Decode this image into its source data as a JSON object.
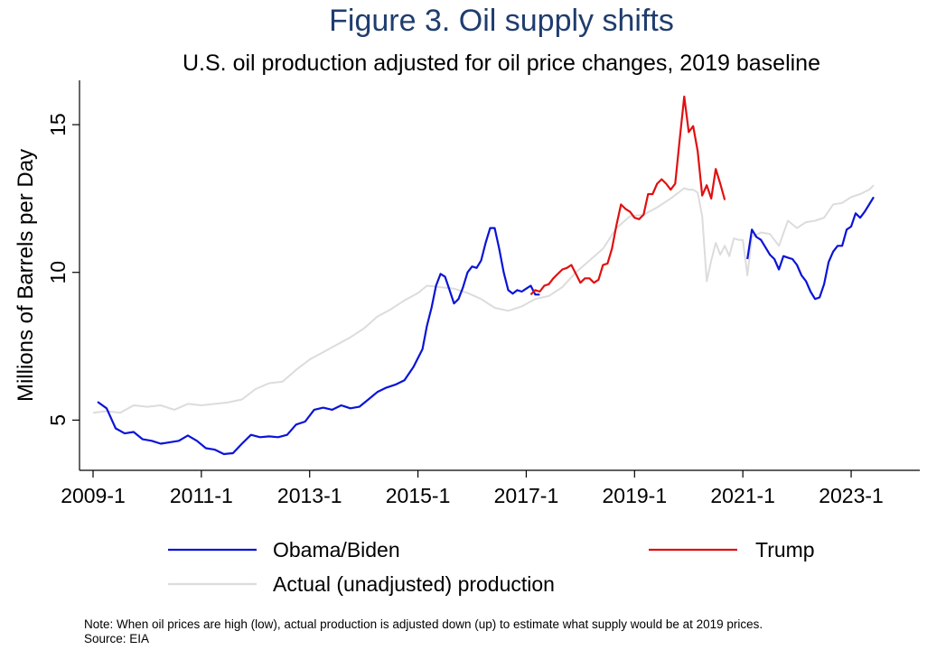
{
  "title": "Figure 3.  Oil supply shifts",
  "subtitle": "U.S. oil production adjusted for oil price changes, 2019 baseline",
  "note": "Note: When oil prices are high (low), actual production is adjusted down (up) to estimate what supply would be at 2019 prices.",
  "source": "Source: EIA",
  "colors": {
    "obama_biden": "#0a14d6",
    "trump": "#e01010",
    "actual": "#dcdcdc",
    "title": "#1f3d6e"
  },
  "chart_data": {
    "type": "line",
    "title": "Figure 3.  Oil supply shifts",
    "subtitle": "U.S. oil production adjusted for oil price changes, 2019 baseline",
    "xlabel": "",
    "ylabel": "Millions of Barrels per Day",
    "xlim": [
      "2009-01",
      "2023-09"
    ],
    "ylim": [
      3.3,
      16.5
    ],
    "x_ticks": [
      "2009-1",
      "2011-1",
      "2013-1",
      "2015-1",
      "2017-1",
      "2019-1",
      "2021-1",
      "2023-1"
    ],
    "y_ticks": [
      5,
      10,
      15
    ],
    "grid": false,
    "legend": "bottom",
    "series": [
      {
        "name": "Obama/Biden",
        "color": "#0a14d6",
        "points": [
          [
            "2009-02",
            5.62
          ],
          [
            "2009-04",
            5.4
          ],
          [
            "2009-06",
            4.72
          ],
          [
            "2009-08",
            4.55
          ],
          [
            "2009-10",
            4.6
          ],
          [
            "2009-12",
            4.35
          ],
          [
            "2010-02",
            4.3
          ],
          [
            "2010-04",
            4.2
          ],
          [
            "2010-06",
            4.25
          ],
          [
            "2010-08",
            4.3
          ],
          [
            "2010-10",
            4.48
          ],
          [
            "2010-12",
            4.3
          ],
          [
            "2011-02",
            4.05
          ],
          [
            "2011-04",
            4.0
          ],
          [
            "2011-06",
            3.85
          ],
          [
            "2011-08",
            3.88
          ],
          [
            "2011-10",
            4.2
          ],
          [
            "2011-12",
            4.5
          ],
          [
            "2012-02",
            4.42
          ],
          [
            "2012-04",
            4.45
          ],
          [
            "2012-06",
            4.42
          ],
          [
            "2012-08",
            4.5
          ],
          [
            "2012-10",
            4.85
          ],
          [
            "2012-12",
            4.95
          ],
          [
            "2013-02",
            5.35
          ],
          [
            "2013-04",
            5.42
          ],
          [
            "2013-06",
            5.35
          ],
          [
            "2013-08",
            5.5
          ],
          [
            "2013-10",
            5.4
          ],
          [
            "2013-12",
            5.45
          ],
          [
            "2014-02",
            5.7
          ],
          [
            "2014-04",
            5.95
          ],
          [
            "2014-06",
            6.1
          ],
          [
            "2014-08",
            6.2
          ],
          [
            "2014-10",
            6.35
          ],
          [
            "2014-12",
            6.8
          ],
          [
            "2015-02",
            7.4
          ],
          [
            "2015-03",
            8.2
          ],
          [
            "2015-04",
            8.8
          ],
          [
            "2015-05",
            9.55
          ],
          [
            "2015-06",
            9.95
          ],
          [
            "2015-07",
            9.85
          ],
          [
            "2015-08",
            9.4
          ],
          [
            "2015-09",
            8.95
          ],
          [
            "2015-10",
            9.1
          ],
          [
            "2015-11",
            9.5
          ],
          [
            "2015-12",
            10.0
          ],
          [
            "2016-01",
            10.2
          ],
          [
            "2016-02",
            10.15
          ],
          [
            "2016-03",
            10.4
          ],
          [
            "2016-04",
            11.0
          ],
          [
            "2016-05",
            11.5
          ],
          [
            "2016-06",
            11.5
          ],
          [
            "2016-07",
            10.8
          ],
          [
            "2016-08",
            10.0
          ],
          [
            "2016-09",
            9.4
          ],
          [
            "2016-10",
            9.28
          ],
          [
            "2016-11",
            9.4
          ],
          [
            "2016-12",
            9.35
          ],
          [
            "2017-01",
            9.45
          ],
          [
            "2017-02",
            9.55
          ],
          [
            "2017-03",
            9.25
          ],
          [
            "2017-04",
            9.25
          ]
        ]
      },
      {
        "name": "Obama/Biden",
        "color": "#0a14d6",
        "points": [
          [
            "2021-02",
            10.45
          ],
          [
            "2021-03",
            11.45
          ],
          [
            "2021-04",
            11.2
          ],
          [
            "2021-05",
            11.1
          ],
          [
            "2021-06",
            10.85
          ],
          [
            "2021-07",
            10.6
          ],
          [
            "2021-08",
            10.45
          ],
          [
            "2021-09",
            10.1
          ],
          [
            "2021-10",
            10.55
          ],
          [
            "2021-11",
            10.5
          ],
          [
            "2021-12",
            10.45
          ],
          [
            "2022-01",
            10.25
          ],
          [
            "2022-02",
            9.9
          ],
          [
            "2022-03",
            9.7
          ],
          [
            "2022-04",
            9.35
          ],
          [
            "2022-05",
            9.1
          ],
          [
            "2022-06",
            9.15
          ],
          [
            "2022-07",
            9.6
          ],
          [
            "2022-08",
            10.35
          ],
          [
            "2022-09",
            10.7
          ],
          [
            "2022-10",
            10.9
          ],
          [
            "2022-11",
            10.9
          ],
          [
            "2022-12",
            11.45
          ],
          [
            "2023-01",
            11.55
          ],
          [
            "2023-02",
            12.0
          ],
          [
            "2023-03",
            11.85
          ],
          [
            "2023-04",
            12.05
          ],
          [
            "2023-05",
            12.3
          ],
          [
            "2023-06",
            12.55
          ]
        ]
      },
      {
        "name": "Trump",
        "color": "#e01010",
        "points": [
          [
            "2017-02",
            9.25
          ],
          [
            "2017-03",
            9.4
          ],
          [
            "2017-04",
            9.35
          ],
          [
            "2017-05",
            9.55
          ],
          [
            "2017-06",
            9.6
          ],
          [
            "2017-07",
            9.8
          ],
          [
            "2017-08",
            9.95
          ],
          [
            "2017-09",
            10.1
          ],
          [
            "2017-10",
            10.15
          ],
          [
            "2017-11",
            10.25
          ],
          [
            "2017-12",
            9.95
          ],
          [
            "2018-01",
            9.65
          ],
          [
            "2018-02",
            9.8
          ],
          [
            "2018-03",
            9.8
          ],
          [
            "2018-04",
            9.65
          ],
          [
            "2018-05",
            9.75
          ],
          [
            "2018-06",
            10.25
          ],
          [
            "2018-07",
            10.3
          ],
          [
            "2018-08",
            10.8
          ],
          [
            "2018-09",
            11.6
          ],
          [
            "2018-10",
            12.3
          ],
          [
            "2018-11",
            12.15
          ],
          [
            "2018-12",
            12.05
          ],
          [
            "2019-01",
            11.85
          ],
          [
            "2019-02",
            11.8
          ],
          [
            "2019-03",
            11.95
          ],
          [
            "2019-04",
            12.65
          ],
          [
            "2019-05",
            12.65
          ],
          [
            "2019-06",
            13.0
          ],
          [
            "2019-07",
            13.15
          ],
          [
            "2019-08",
            13.0
          ],
          [
            "2019-09",
            12.8
          ],
          [
            "2019-10",
            13.0
          ],
          [
            "2019-11",
            14.5
          ],
          [
            "2019-12",
            15.95
          ],
          [
            "2020-01",
            14.75
          ],
          [
            "2020-02",
            14.95
          ],
          [
            "2020-03",
            14.1
          ],
          [
            "2020-04",
            12.6
          ],
          [
            "2020-05",
            12.95
          ],
          [
            "2020-06",
            12.5
          ],
          [
            "2020-07",
            13.5
          ],
          [
            "2020-08",
            13.0
          ],
          [
            "2020-09",
            12.45
          ]
        ]
      },
      {
        "name": "Actual (unadjusted) production",
        "color": "#dcdcdc",
        "points": [
          [
            "2009-01",
            5.25
          ],
          [
            "2009-04",
            5.3
          ],
          [
            "2009-07",
            5.25
          ],
          [
            "2009-10",
            5.5
          ],
          [
            "2010-01",
            5.45
          ],
          [
            "2010-04",
            5.5
          ],
          [
            "2010-07",
            5.35
          ],
          [
            "2010-10",
            5.55
          ],
          [
            "2011-01",
            5.5
          ],
          [
            "2011-04",
            5.55
          ],
          [
            "2011-07",
            5.6
          ],
          [
            "2011-10",
            5.7
          ],
          [
            "2012-01",
            6.05
          ],
          [
            "2012-04",
            6.25
          ],
          [
            "2012-07",
            6.3
          ],
          [
            "2012-10",
            6.7
          ],
          [
            "2013-01",
            7.05
          ],
          [
            "2013-04",
            7.3
          ],
          [
            "2013-07",
            7.55
          ],
          [
            "2013-10",
            7.8
          ],
          [
            "2014-01",
            8.1
          ],
          [
            "2014-04",
            8.5
          ],
          [
            "2014-07",
            8.75
          ],
          [
            "2014-10",
            9.05
          ],
          [
            "2015-01",
            9.3
          ],
          [
            "2015-03",
            9.55
          ],
          [
            "2015-06",
            9.5
          ],
          [
            "2015-09",
            9.45
          ],
          [
            "2015-12",
            9.3
          ],
          [
            "2016-03",
            9.1
          ],
          [
            "2016-06",
            8.8
          ],
          [
            "2016-09",
            8.7
          ],
          [
            "2016-12",
            8.85
          ],
          [
            "2017-03",
            9.1
          ],
          [
            "2017-06",
            9.2
          ],
          [
            "2017-09",
            9.5
          ],
          [
            "2017-12",
            10.0
          ],
          [
            "2018-03",
            10.4
          ],
          [
            "2018-06",
            10.8
          ],
          [
            "2018-09",
            11.5
          ],
          [
            "2018-12",
            11.9
          ],
          [
            "2019-03",
            11.95
          ],
          [
            "2019-06",
            12.2
          ],
          [
            "2019-09",
            12.5
          ],
          [
            "2019-12",
            12.85
          ],
          [
            "2020-01",
            12.8
          ],
          [
            "2020-02",
            12.8
          ],
          [
            "2020-03",
            12.7
          ],
          [
            "2020-04",
            11.9
          ],
          [
            "2020-05",
            9.7
          ],
          [
            "2020-06",
            10.4
          ],
          [
            "2020-07",
            11.0
          ],
          [
            "2020-08",
            10.6
          ],
          [
            "2020-09",
            10.9
          ],
          [
            "2020-10",
            10.55
          ],
          [
            "2020-11",
            11.15
          ],
          [
            "2020-12",
            11.1
          ],
          [
            "2021-01",
            11.1
          ],
          [
            "2021-02",
            9.9
          ],
          [
            "2021-03",
            11.2
          ],
          [
            "2021-05",
            11.35
          ],
          [
            "2021-07",
            11.3
          ],
          [
            "2021-09",
            10.9
          ],
          [
            "2021-11",
            11.75
          ],
          [
            "2022-01",
            11.5
          ],
          [
            "2022-03",
            11.7
          ],
          [
            "2022-05",
            11.75
          ],
          [
            "2022-07",
            11.85
          ],
          [
            "2022-09",
            12.3
          ],
          [
            "2022-11",
            12.35
          ],
          [
            "2023-01",
            12.55
          ],
          [
            "2023-03",
            12.65
          ],
          [
            "2023-05",
            12.8
          ],
          [
            "2023-06",
            12.95
          ]
        ]
      }
    ],
    "legend_entries": [
      {
        "label": "Obama/Biden",
        "color": "#0a14d6"
      },
      {
        "label": "Trump",
        "color": "#e01010"
      },
      {
        "label": "Actual (unadjusted) production",
        "color": "#dcdcdc"
      }
    ]
  }
}
